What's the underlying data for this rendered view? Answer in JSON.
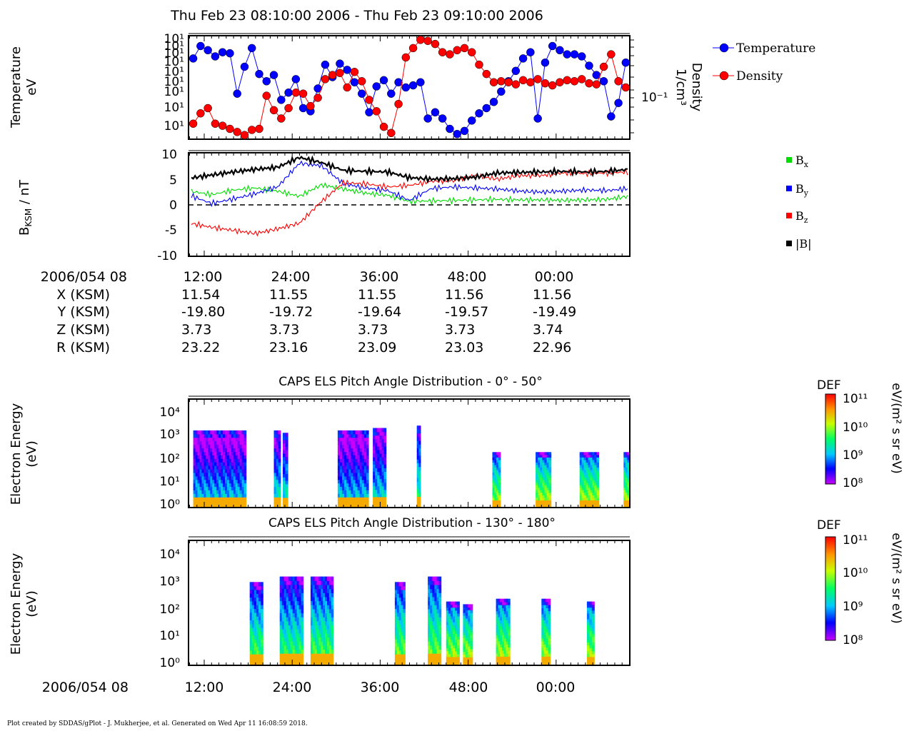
{
  "title": "Thu Feb 23 08:10:00 2006 - Thu Feb 23 09:10:00 2006",
  "footer": "Plot created by SDDAS/gPlot - J. Mukherjee, et al.  Generated on Wed Apr 11 16:08:59 2018.",
  "colors": {
    "temperature": "#0000ff",
    "density": "#ff0000",
    "bx": "#00dd00",
    "by": "#0000ff",
    "bz": "#ff0000",
    "btot": "#000000"
  },
  "panel1": {
    "ylabel_line1": "Temperature",
    "ylabel_line2": "eV",
    "yticks": [
      "10¹",
      "10¹",
      "10¹",
      "10¹",
      "10¹",
      "10¹",
      "10¹",
      "10¹",
      "10¹",
      "10¹"
    ],
    "right_ylabel_line1": "Density",
    "right_ylabel_line2": "1/cm³",
    "right_tick": "10⁻¹",
    "legend": [
      "Temperature",
      "Density"
    ]
  },
  "panel2": {
    "ylabel_main": "B",
    "ylabel_sub": "KSM",
    "ylabel_rest": " / nT",
    "yticks": [
      "10",
      "5",
      "0",
      "-5",
      "-10"
    ],
    "legend": [
      {
        "main": "B",
        "sub": "x"
      },
      {
        "main": "B",
        "sub": "y"
      },
      {
        "main": "B",
        "sub": "z"
      },
      {
        "main": "|B|",
        "sub": ""
      }
    ]
  },
  "ephemeris": {
    "header": "2006/054 08",
    "ticks": [
      "12:00",
      "24:00",
      "36:00",
      "48:00",
      "00:00"
    ],
    "rows": [
      {
        "label": "X (KSM)",
        "values": [
          "11.54",
          "11.55",
          "11.55",
          "11.56",
          "11.56"
        ]
      },
      {
        "label": "Y (KSM)",
        "values": [
          "-19.80",
          "-19.72",
          "-19.64",
          "-19.57",
          "-19.49"
        ]
      },
      {
        "label": "Z (KSM)",
        "values": [
          "3.73",
          "3.73",
          "3.73",
          "3.73",
          "3.74"
        ]
      },
      {
        "label": "R (KSM)",
        "values": [
          "23.22",
          "23.16",
          "23.09",
          "23.03",
          "22.96"
        ]
      }
    ]
  },
  "spec1": {
    "title": "CAPS ELS Pitch Angle Distribution - 0° - 50°",
    "ylabel_line1": "Electron Energy",
    "ylabel_line2": "(eV)",
    "yticks": [
      "10⁴",
      "10³",
      "10²",
      "10¹",
      "10⁰"
    ]
  },
  "spec2": {
    "title": "CAPS ELS Pitch Angle Distribution - 130° - 180°",
    "ylabel_line1": "Electron Energy",
    "ylabel_line2": "(eV)",
    "yticks": [
      "10⁴",
      "10³",
      "10²",
      "10¹",
      "10⁰"
    ]
  },
  "colorbar": {
    "title": "DEF",
    "unit": "eV/(m² s sr eV)",
    "ticks": [
      "10¹¹",
      "10¹⁰",
      "10⁹",
      "10⁸"
    ],
    "range_log10": [
      8,
      11
    ]
  },
  "bottom_axis": {
    "header": "2006/054 08",
    "ticks": [
      "12:00",
      "24:00",
      "36:00",
      "48:00",
      "00:00"
    ]
  },
  "chart_data": [
    {
      "type": "scatter",
      "panel": "plasma-moments",
      "xlabel": "",
      "ylabel": "Temperature eV",
      "series": [
        {
          "name": "Temperature",
          "x": [
            10.5,
            11.5,
            12.5,
            13.5,
            14.5,
            15.5,
            16.5,
            17.5,
            18.5,
            19.5,
            20.5,
            21.5,
            22.5,
            23.5,
            24.5,
            25.5,
            26.5,
            27.5,
            28.5,
            29.5,
            30.5,
            31.5,
            32.5,
            33.5,
            34.5,
            35.5,
            36.5,
            37.5,
            38.5,
            39.5,
            40.5,
            41.5,
            42.5,
            43.5,
            44.5,
            45.5,
            46.5,
            47.5,
            48.5,
            49.5,
            50.5,
            51.5,
            52.5,
            53.5,
            54.5,
            55.5,
            56.5,
            57.5,
            58.5,
            59.5,
            60.5,
            61.5,
            62.5,
            63.5,
            64.5,
            65.5,
            66.5,
            67.5,
            68.5,
            69.5
          ],
          "y": [
            0.78,
            0.9,
            0.86,
            0.8,
            0.84,
            0.83,
            0.44,
            0.7,
            0.88,
            0.63,
            0.56,
            0.62,
            0.38,
            0.45,
            0.58,
            0.3,
            0.27,
            0.49,
            0.72,
            0.6,
            0.73,
            0.67,
            0.55,
            0.44,
            0.26,
            0.51,
            0.57,
            0.44,
            0.55,
            0.5,
            0.52,
            0.55,
            0.2,
            0.26,
            0.2,
            0.1,
            0.05,
            0.08,
            0.18,
            0.25,
            0.3,
            0.36,
            0.46,
            0.56,
            0.66,
            0.78,
            0.84,
            0.2,
            0.74,
            0.9,
            0.86,
            0.82,
            0.82,
            0.8,
            0.71,
            0.62,
            0.56,
            0.22,
            0.35,
            0.74
          ]
        },
        {
          "name": "Density",
          "x": [
            10.5,
            11.5,
            12.5,
            13.5,
            14.5,
            15.5,
            16.5,
            17.5,
            18.5,
            19.5,
            20.5,
            21.5,
            22.5,
            23.5,
            24.5,
            25.5,
            26.5,
            27.5,
            28.5,
            29.5,
            30.5,
            31.5,
            32.5,
            33.5,
            34.5,
            35.5,
            36.5,
            37.5,
            38.5,
            39.5,
            40.5,
            41.5,
            42.5,
            43.5,
            44.5,
            45.5,
            46.5,
            47.5,
            48.5,
            49.5,
            50.5,
            51.5,
            52.5,
            53.5,
            54.5,
            55.5,
            56.5,
            57.5,
            58.5,
            59.5,
            60.5,
            61.5,
            62.5,
            63.5,
            64.5,
            65.5,
            66.5,
            67.5,
            68.5,
            69.5
          ],
          "y": [
            0.15,
            0.25,
            0.3,
            0.15,
            0.13,
            0.1,
            0.07,
            0.04,
            0.09,
            0.1,
            0.42,
            0.28,
            0.2,
            0.3,
            0.45,
            0.44,
            0.32,
            0.4,
            0.58,
            0.62,
            0.64,
            0.5,
            0.65,
            0.56,
            0.38,
            0.27,
            0.12,
            0.06,
            0.34,
            0.79,
            0.88,
            0.96,
            0.95,
            0.92,
            0.84,
            0.82,
            0.86,
            0.88,
            0.84,
            0.72,
            0.63,
            0.55,
            0.56,
            0.55,
            0.53,
            0.57,
            0.55,
            0.58,
            0.54,
            0.52,
            0.55,
            0.57,
            0.56,
            0.58,
            0.54,
            0.53,
            0.7,
            0.82,
            0.56,
            0.5
          ]
        }
      ]
    },
    {
      "type": "line",
      "panel": "magnetic-field",
      "ylabel": "B KSM / nT",
      "ylim": [
        -10,
        10
      ],
      "x": [
        10,
        13,
        16,
        19,
        22,
        25,
        28,
        31,
        34,
        37,
        40,
        43,
        46,
        49,
        52,
        55,
        58,
        61,
        64,
        67,
        70
      ],
      "series": [
        {
          "name": "Bx",
          "values": [
            2.6,
            1.9,
            2.8,
            3.2,
            2.6,
            1.6,
            3.8,
            3.0,
            2.2,
            1.8,
            0.6,
            0.7,
            0.8,
            0.9,
            1.0,
            0.9,
            0.9,
            0.8,
            0.9,
            1.0,
            1.6
          ]
        },
        {
          "name": "By",
          "values": [
            1.8,
            0.2,
            1.1,
            2.1,
            3.4,
            8.0,
            7.5,
            4.0,
            3.2,
            2.7,
            0.8,
            3.1,
            3.4,
            3.2,
            3.0,
            2.6,
            2.4,
            2.6,
            2.8,
            2.7,
            3.1
          ]
        },
        {
          "name": "Bz",
          "values": [
            -3.6,
            -4.4,
            -5.0,
            -5.6,
            -4.7,
            -3.6,
            0.6,
            4.2,
            4.0,
            3.4,
            3.7,
            4.5,
            4.6,
            5.6,
            4.9,
            5.6,
            5.6,
            6.1,
            6.0,
            6.1,
            6.3
          ]
        },
        {
          "name": "|B|",
          "values": [
            5.1,
            5.7,
            6.3,
            6.8,
            7.2,
            9.1,
            8.1,
            6.6,
            6.4,
            6.3,
            5.2,
            4.9,
            5.0,
            5.3,
            6.1,
            6.2,
            6.3,
            6.4,
            6.3,
            6.4,
            6.8
          ]
        }
      ]
    },
    {
      "type": "heatmap",
      "panel": "els-0-50",
      "title": "CAPS ELS Pitch Angle Distribution - 0° - 50°",
      "ylabel": "Electron Energy (eV)",
      "yscale": "log",
      "ylim_log10": [
        0,
        4.5
      ],
      "color_scale": "DEF log10 8-11",
      "segments": [
        {
          "x0": 10.5,
          "x1": 17.7,
          "top_log10": 3.2,
          "low_log10": 8.6
        },
        {
          "x0": 21.5,
          "x1": 22.4,
          "top_log10": 3.2,
          "low_log10": 8.8
        },
        {
          "x0": 22.7,
          "x1": 23.4,
          "top_log10": 3.1,
          "low_log10": 8.8
        },
        {
          "x0": 30.2,
          "x1": 34.4,
          "top_log10": 3.2,
          "low_log10": 8.6
        },
        {
          "x0": 35.0,
          "x1": 36.8,
          "top_log10": 3.3,
          "low_log10": 8.7
        },
        {
          "x0": 41.0,
          "x1": 41.5,
          "top_log10": 3.4,
          "low_log10": 9.0
        },
        {
          "x0": 51.3,
          "x1": 52.4,
          "top_log10": 2.3,
          "low_log10": 9.4
        },
        {
          "x0": 57.2,
          "x1": 59.3,
          "top_log10": 2.3,
          "low_log10": 9.5
        },
        {
          "x0": 63.2,
          "x1": 65.8,
          "top_log10": 2.3,
          "low_log10": 9.5
        },
        {
          "x0": 69.2,
          "x1": 72.2,
          "top_log10": 2.3,
          "low_log10": 9.5
        }
      ]
    },
    {
      "type": "heatmap",
      "panel": "els-130-180",
      "title": "CAPS ELS Pitch Angle Distribution - 130° - 180°",
      "ylabel": "Electron Energy (eV)",
      "yscale": "log",
      "ylim_log10": [
        0,
        4.5
      ],
      "color_scale": "DEF log10 8-11",
      "segments": [
        {
          "x0": 18.2,
          "x1": 20.0,
          "top_log10": 3.0,
          "low_log10": 9.2
        },
        {
          "x0": 22.3,
          "x1": 25.5,
          "top_log10": 3.2,
          "low_log10": 9.1
        },
        {
          "x0": 26.5,
          "x1": 29.6,
          "top_log10": 3.2,
          "low_log10": 9.2
        },
        {
          "x0": 38.0,
          "x1": 39.4,
          "top_log10": 3.0,
          "low_log10": 9.3
        },
        {
          "x0": 42.5,
          "x1": 44.3,
          "top_log10": 3.2,
          "low_log10": 9.3
        },
        {
          "x0": 45.0,
          "x1": 46.8,
          "top_log10": 2.3,
          "low_log10": 9.5
        },
        {
          "x0": 47.3,
          "x1": 48.6,
          "top_log10": 2.2,
          "low_log10": 9.5
        },
        {
          "x0": 51.8,
          "x1": 53.7,
          "top_log10": 2.4,
          "low_log10": 9.5
        },
        {
          "x0": 58.0,
          "x1": 59.2,
          "top_log10": 2.4,
          "low_log10": 9.5
        },
        {
          "x0": 64.2,
          "x1": 65.2,
          "top_log10": 2.3,
          "low_log10": 9.5
        }
      ]
    }
  ]
}
